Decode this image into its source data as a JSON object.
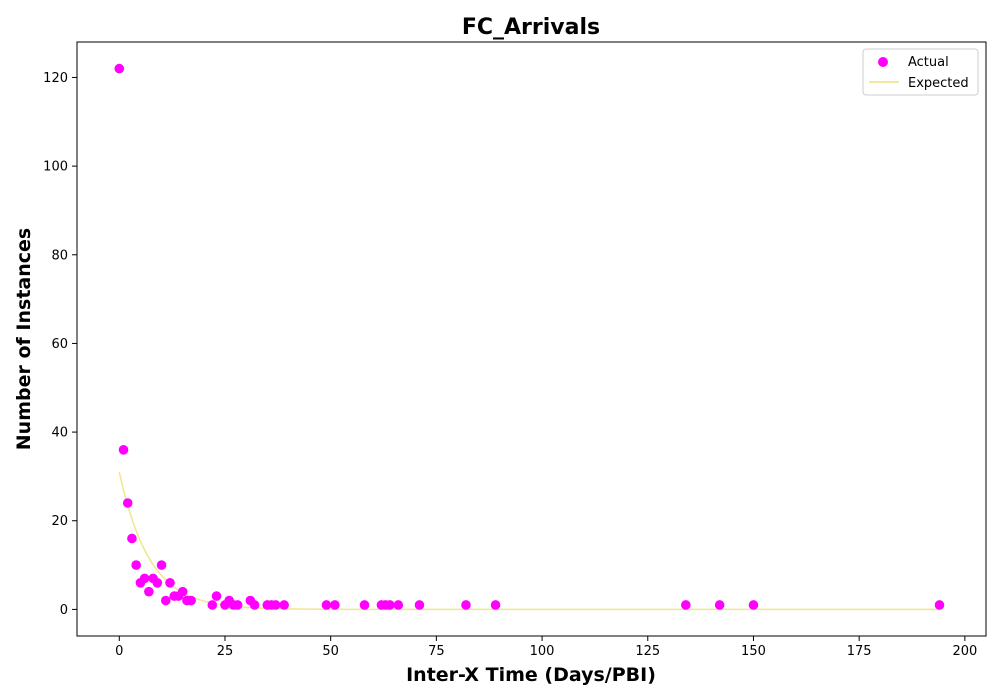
{
  "chart_data": {
    "type": "scatter",
    "title": "FC_Arrivals",
    "xlabel": "Inter-X Time (Days/PBI)",
    "ylabel": "Number of Instances",
    "xlim": [
      -10,
      205
    ],
    "ylim": [
      -6,
      128
    ],
    "xticks": [
      0,
      25,
      50,
      75,
      100,
      125,
      150,
      175,
      200
    ],
    "yticks": [
      0,
      20,
      40,
      60,
      80,
      100,
      120
    ],
    "grid": false,
    "legend_position": "top-right",
    "colors": {
      "actual": "#ff00ff",
      "expected": "#f0e68c"
    },
    "series": [
      {
        "name": "Actual",
        "kind": "scatter",
        "points": [
          [
            0,
            122
          ],
          [
            1,
            36
          ],
          [
            2,
            24
          ],
          [
            3,
            16
          ],
          [
            4,
            10
          ],
          [
            5,
            6
          ],
          [
            6,
            7
          ],
          [
            7,
            4
          ],
          [
            8,
            7
          ],
          [
            9,
            6
          ],
          [
            10,
            10
          ],
          [
            11,
            2
          ],
          [
            12,
            6
          ],
          [
            13,
            3
          ],
          [
            14,
            3
          ],
          [
            15,
            4
          ],
          [
            16,
            2
          ],
          [
            17,
            2
          ],
          [
            22,
            1
          ],
          [
            23,
            3
          ],
          [
            25,
            1
          ],
          [
            26,
            2
          ],
          [
            27,
            1
          ],
          [
            28,
            1
          ],
          [
            31,
            2
          ],
          [
            32,
            1
          ],
          [
            35,
            1
          ],
          [
            36,
            1
          ],
          [
            37,
            1
          ],
          [
            39,
            1
          ],
          [
            49,
            1
          ],
          [
            51,
            1
          ],
          [
            58,
            1
          ],
          [
            62,
            1
          ],
          [
            63,
            1
          ],
          [
            64,
            1
          ],
          [
            66,
            1
          ],
          [
            71,
            1
          ],
          [
            82,
            1
          ],
          [
            89,
            1
          ],
          [
            134,
            1
          ],
          [
            142,
            1
          ],
          [
            150,
            1
          ],
          [
            194,
            1
          ]
        ]
      },
      {
        "name": "Expected",
        "kind": "line",
        "model": "exponential",
        "a": 31,
        "b": 0.14,
        "x_range": [
          0,
          194
        ]
      }
    ]
  }
}
